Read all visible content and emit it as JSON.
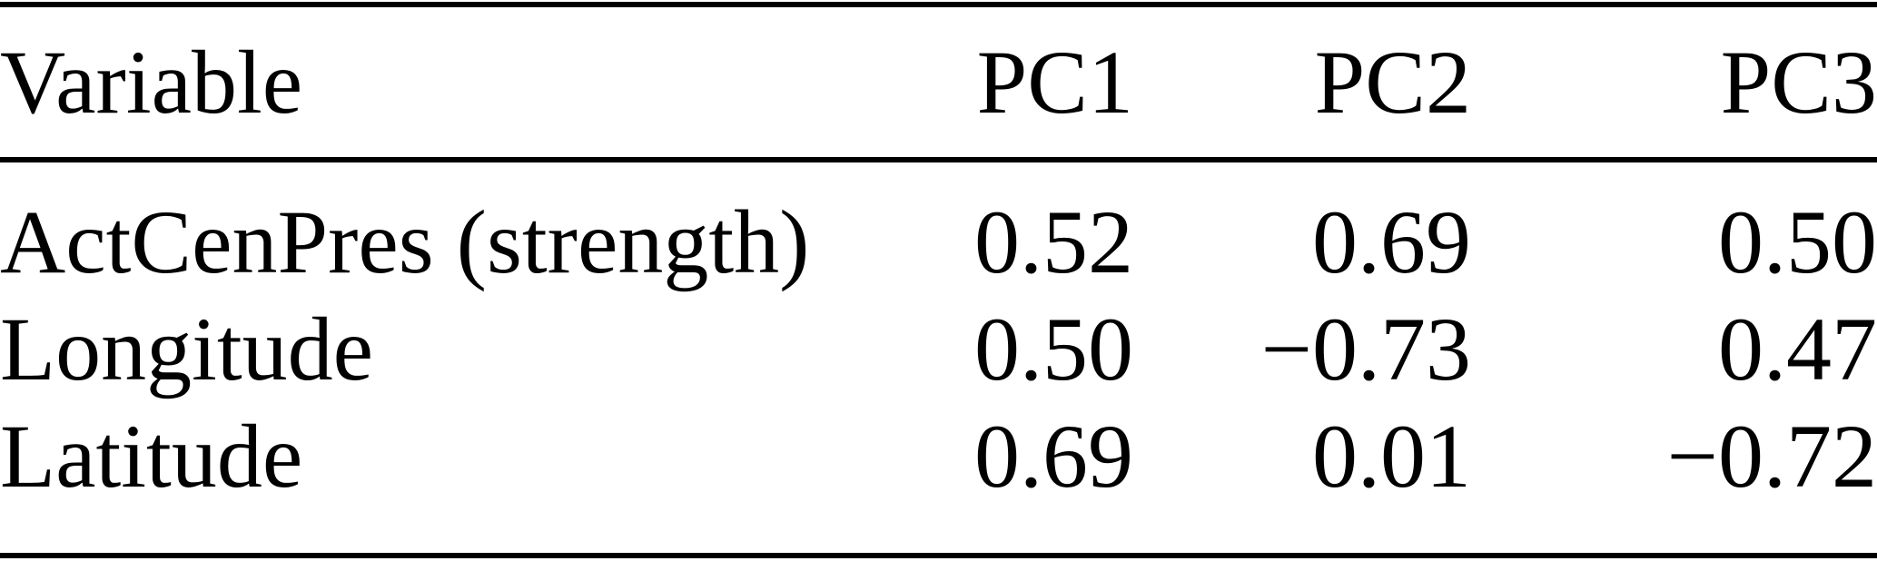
{
  "page": {
    "background": "#ffffff",
    "text_color": "#000000",
    "rule_color": "#000000"
  },
  "table": {
    "columns": [
      {
        "key": "variable",
        "label": "Variable"
      },
      {
        "key": "pc1",
        "label": "PC1"
      },
      {
        "key": "pc2",
        "label": "PC2"
      },
      {
        "key": "pc3",
        "label": "PC3"
      }
    ],
    "rows": [
      {
        "variable": "ActCenPres (strength)",
        "pc1": "0.52",
        "pc2": "0.69",
        "pc3": "0.50"
      },
      {
        "variable": "Longitude",
        "pc1": "0.50",
        "pc2": "−0.73",
        "pc3": "0.47"
      },
      {
        "variable": "Latitude",
        "pc1": "0.69",
        "pc2": "0.01",
        "pc3": "−0.72"
      }
    ]
  }
}
